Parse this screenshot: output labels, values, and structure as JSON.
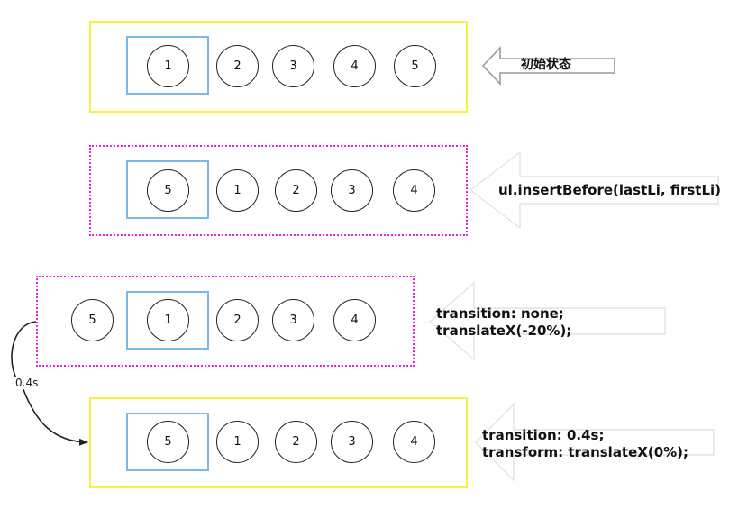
{
  "colors": {
    "frame_solid": "#f6f142",
    "frame_dotted": "#e826d8",
    "viewport": "#7ab8e8",
    "circle_stroke": "#222222",
    "arrow_stroke": "#9a9a9a"
  },
  "rows": [
    {
      "items": [
        "1",
        "2",
        "3",
        "4",
        "5"
      ],
      "label": "初始状态"
    },
    {
      "items": [
        "5",
        "1",
        "2",
        "3",
        "4"
      ],
      "label": "ul.insertBefore(lastLi, firstLi)"
    },
    {
      "items": [
        "5",
        "1",
        "2",
        "3",
        "4"
      ],
      "label_line1": "transition:  none;",
      "label_line2": "translateX(-20%);"
    },
    {
      "items": [
        "5",
        "1",
        "2",
        "3",
        "4"
      ],
      "label_line1": "transition: 0.4s;",
      "label_line2": "transform: translateX(0%);"
    }
  ],
  "duration_label": "0.4s"
}
